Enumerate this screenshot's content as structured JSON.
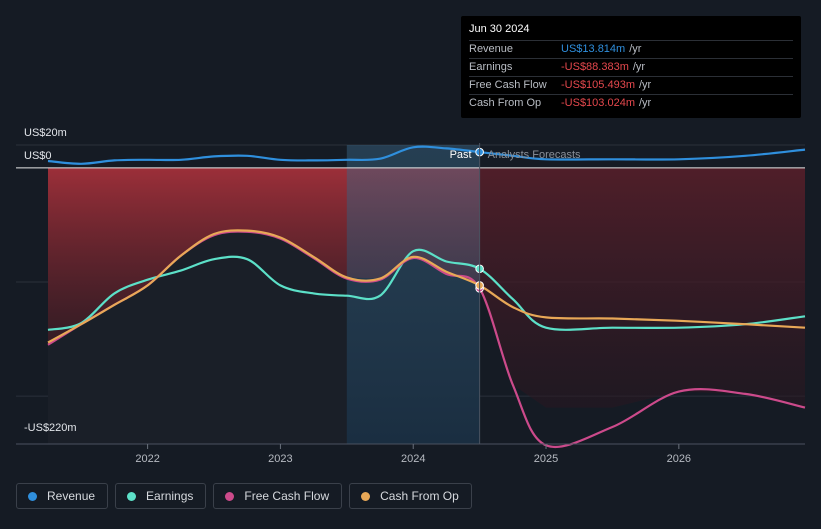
{
  "chart_data": {
    "type": "line",
    "x_ticks": [
      "2022",
      "2023",
      "2024",
      "2025",
      "2026"
    ],
    "x_tick_values": [
      2022.0,
      2023.0,
      2024.0,
      2025.0,
      2026.0
    ],
    "xlim": [
      2021.25,
      2026.95
    ],
    "ylim": [
      -220,
      20
    ],
    "y_labels": [
      {
        "label": "US$20m",
        "value": 20
      },
      {
        "label": "US$0",
        "value": 0
      },
      {
        "label": "-US$220m",
        "value": -220
      }
    ],
    "past_label": "Past",
    "forecast_label": "Analysts Forecasts",
    "split_x": 2024.5,
    "highlight_start_x": 2023.5,
    "series": [
      {
        "name": "Revenue",
        "color": "#2f8fdd",
        "points": [
          [
            2021.25,
            6.0
          ],
          [
            2021.5,
            3.5
          ],
          [
            2021.75,
            6.5
          ],
          [
            2022.0,
            7.0
          ],
          [
            2022.25,
            7.0
          ],
          [
            2022.5,
            10.0
          ],
          [
            2022.75,
            10.5
          ],
          [
            2023.0,
            7.0
          ],
          [
            2023.25,
            6.5
          ],
          [
            2023.5,
            7.0
          ],
          [
            2023.75,
            8.0
          ],
          [
            2024.0,
            18.0
          ],
          [
            2024.25,
            17.0
          ],
          [
            2024.5,
            13.8
          ],
          [
            2024.75,
            10.5
          ],
          [
            2025.0,
            7.5
          ],
          [
            2025.5,
            7.5
          ],
          [
            2026.0,
            7.5
          ],
          [
            2026.5,
            10.5
          ],
          [
            2026.95,
            16.0
          ]
        ]
      },
      {
        "name": "Earnings",
        "color": "#5ce0c8",
        "points": [
          [
            2021.25,
            -142.0
          ],
          [
            2021.5,
            -136.0
          ],
          [
            2021.75,
            -110.0
          ],
          [
            2022.0,
            -98.0
          ],
          [
            2022.25,
            -90.0
          ],
          [
            2022.5,
            -80.0
          ],
          [
            2022.75,
            -80.0
          ],
          [
            2023.0,
            -103.0
          ],
          [
            2023.25,
            -110.0
          ],
          [
            2023.5,
            -112.0
          ],
          [
            2023.75,
            -112.0
          ],
          [
            2024.0,
            -73.0
          ],
          [
            2024.25,
            -82.0
          ],
          [
            2024.5,
            -88.4
          ],
          [
            2024.75,
            -115.0
          ],
          [
            2025.0,
            -140.0
          ],
          [
            2025.5,
            -140.0
          ],
          [
            2026.0,
            -140.0
          ],
          [
            2026.5,
            -137.0
          ],
          [
            2026.95,
            -130.0
          ]
        ]
      },
      {
        "name": "Free Cash Flow",
        "color": "#cc4a8b",
        "points": [
          [
            2021.25,
            -155.0
          ],
          [
            2021.5,
            -137.0
          ],
          [
            2021.75,
            -120.0
          ],
          [
            2022.0,
            -103.0
          ],
          [
            2022.25,
            -77.0
          ],
          [
            2022.5,
            -59.0
          ],
          [
            2022.75,
            -56.0
          ],
          [
            2023.0,
            -62.0
          ],
          [
            2023.25,
            -79.0
          ],
          [
            2023.5,
            -97.0
          ],
          [
            2023.75,
            -98.0
          ],
          [
            2024.0,
            -79.0
          ],
          [
            2024.25,
            -93.0
          ],
          [
            2024.5,
            -105.5
          ],
          [
            2024.75,
            -190.0
          ],
          [
            2025.0,
            -243.0
          ],
          [
            2025.5,
            -227.0
          ],
          [
            2026.0,
            -196.0
          ],
          [
            2026.5,
            -198.0
          ],
          [
            2026.95,
            -210.0
          ]
        ]
      },
      {
        "name": "Cash From Op",
        "color": "#e8a857",
        "points": [
          [
            2021.25,
            -153.0
          ],
          [
            2021.5,
            -137.0
          ],
          [
            2021.75,
            -120.0
          ],
          [
            2022.0,
            -103.0
          ],
          [
            2022.25,
            -77.0
          ],
          [
            2022.5,
            -58.0
          ],
          [
            2022.75,
            -55.0
          ],
          [
            2023.0,
            -61.0
          ],
          [
            2023.25,
            -78.0
          ],
          [
            2023.5,
            -96.0
          ],
          [
            2023.75,
            -97.0
          ],
          [
            2024.0,
            -78.0
          ],
          [
            2024.25,
            -91.0
          ],
          [
            2024.5,
            -103.0
          ],
          [
            2024.75,
            -122.0
          ],
          [
            2025.0,
            -131.0
          ],
          [
            2025.5,
            -132.0
          ],
          [
            2026.0,
            -134.0
          ],
          [
            2026.5,
            -137.0
          ],
          [
            2026.95,
            -140.0
          ]
        ]
      }
    ]
  },
  "tooltip": {
    "date": "Jun 30 2024",
    "rows": [
      {
        "label": "Revenue",
        "value": "US$13.814m",
        "unit": "/yr",
        "color": "#2f8fdd"
      },
      {
        "label": "Earnings",
        "value": "-US$88.383m",
        "unit": "/yr",
        "color": "#e5484d"
      },
      {
        "label": "Free Cash Flow",
        "value": "-US$105.493m",
        "unit": "/yr",
        "color": "#e5484d"
      },
      {
        "label": "Cash From Op",
        "value": "-US$103.024m",
        "unit": "/yr",
        "color": "#e5484d"
      }
    ]
  },
  "legend": [
    {
      "label": "Revenue",
      "color": "#2f8fdd"
    },
    {
      "label": "Earnings",
      "color": "#5ce0c8"
    },
    {
      "label": "Free Cash Flow",
      "color": "#cc4a8b"
    },
    {
      "label": "Cash From Op",
      "color": "#e8a857"
    }
  ]
}
